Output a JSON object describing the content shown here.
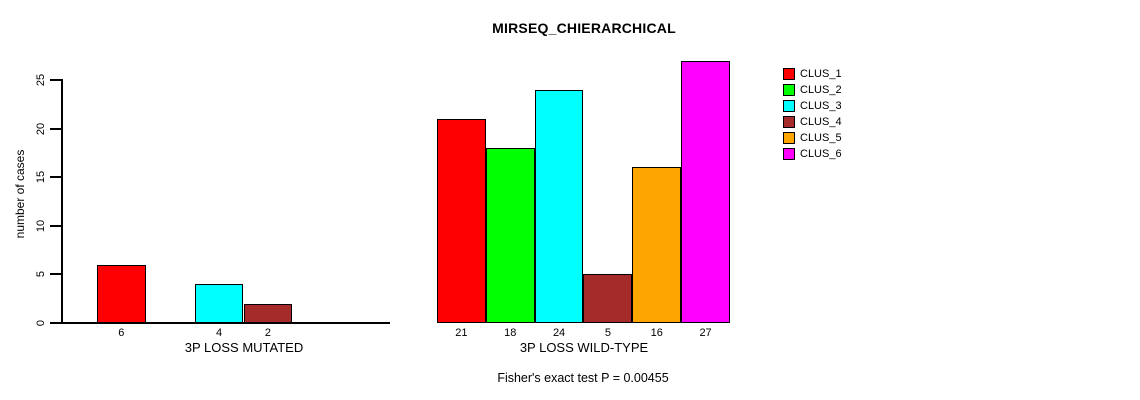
{
  "chart_data": {
    "type": "bar",
    "title": "MIRSEQ_CHIERARCHICAL",
    "ylabel": "number of cases",
    "ylim": [
      0,
      25
    ],
    "yticks": [
      0,
      5,
      10,
      15,
      20,
      25
    ],
    "grid": false,
    "legend_position": "top-right",
    "legend": [
      {
        "label": "CLUS_1",
        "color": "#FF0000"
      },
      {
        "label": "CLUS_2",
        "color": "#00FF00"
      },
      {
        "label": "CLUS_3",
        "color": "#00FFFF"
      },
      {
        "label": "CLUS_4",
        "color": "#A52A2A"
      },
      {
        "label": "CLUS_5",
        "color": "#FFA500"
      },
      {
        "label": "CLUS_6",
        "color": "#FF00FF"
      }
    ],
    "groups": [
      {
        "label": "3P LOSS MUTATED",
        "series": [
          "CLUS_1",
          "CLUS_2",
          "CLUS_3",
          "CLUS_4",
          "CLUS_5",
          "CLUS_6"
        ],
        "values": [
          6,
          0,
          4,
          2,
          0,
          0
        ],
        "bar_labels": [
          "6",
          "",
          "4",
          "2",
          "",
          ""
        ]
      },
      {
        "label": "3P LOSS WILD-TYPE",
        "series": [
          "CLUS_1",
          "CLUS_2",
          "CLUS_3",
          "CLUS_4",
          "CLUS_5",
          "CLUS_6"
        ],
        "values": [
          21,
          18,
          24,
          5,
          16,
          27
        ],
        "bar_labels": [
          "21",
          "18",
          "24",
          "5",
          "16",
          "27"
        ]
      }
    ],
    "annotation": "Fisher's exact test P = 0.00455",
    "axis_color": "#000000",
    "text_color": "#000000"
  }
}
